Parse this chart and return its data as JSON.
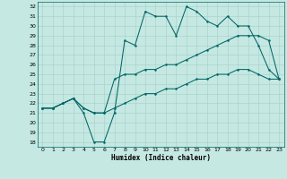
{
  "xlabel": "Humidex (Indice chaleur)",
  "xlim": [
    -0.5,
    23.5
  ],
  "ylim": [
    17.5,
    32.5
  ],
  "yticks": [
    18,
    19,
    20,
    21,
    22,
    23,
    24,
    25,
    26,
    27,
    28,
    29,
    30,
    31,
    32
  ],
  "xticks": [
    0,
    1,
    2,
    3,
    4,
    5,
    6,
    7,
    8,
    9,
    10,
    11,
    12,
    13,
    14,
    15,
    16,
    17,
    18,
    19,
    20,
    21,
    22,
    23
  ],
  "background_color": "#c5e8e2",
  "line_color": "#006666",
  "grid_color": "#aad4cc",
  "line1_x": [
    0,
    1,
    2,
    3,
    4,
    5,
    6,
    7,
    8,
    9,
    10,
    11,
    12,
    13,
    14,
    15,
    16,
    17,
    18,
    19,
    20,
    21,
    22,
    23
  ],
  "line1_y": [
    21.5,
    21.5,
    22.0,
    22.5,
    21.0,
    18.0,
    18.0,
    21.0,
    28.5,
    28.0,
    31.5,
    31.0,
    31.0,
    29.0,
    32.0,
    31.5,
    30.5,
    30.0,
    31.0,
    30.0,
    30.0,
    28.0,
    25.5,
    24.5
  ],
  "line2_x": [
    0,
    1,
    2,
    3,
    4,
    5,
    6,
    7,
    8,
    9,
    10,
    11,
    12,
    13,
    14,
    15,
    16,
    17,
    18,
    19,
    20,
    21,
    22,
    23
  ],
  "line2_y": [
    21.5,
    21.5,
    22.0,
    22.5,
    21.5,
    21.0,
    21.0,
    24.5,
    25.0,
    25.0,
    25.5,
    25.5,
    26.0,
    26.0,
    26.5,
    27.0,
    27.5,
    28.0,
    28.5,
    29.0,
    29.0,
    29.0,
    28.5,
    24.5
  ],
  "line3_x": [
    0,
    1,
    2,
    3,
    4,
    5,
    6,
    7,
    8,
    9,
    10,
    11,
    12,
    13,
    14,
    15,
    16,
    17,
    18,
    19,
    20,
    21,
    22,
    23
  ],
  "line3_y": [
    21.5,
    21.5,
    22.0,
    22.5,
    21.5,
    21.0,
    21.0,
    21.5,
    22.0,
    22.5,
    23.0,
    23.0,
    23.5,
    23.5,
    24.0,
    24.5,
    24.5,
    25.0,
    25.0,
    25.5,
    25.5,
    25.0,
    24.5,
    24.5
  ]
}
